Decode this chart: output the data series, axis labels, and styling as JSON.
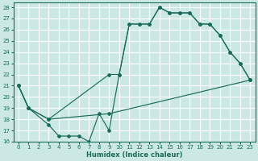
{
  "xlabel": "Humidex (Indice chaleur)",
  "background_color": "#cce8e5",
  "grid_color": "#ffffff",
  "line_color": "#1a6b5a",
  "ylim": [
    16,
    28.4
  ],
  "xlim": [
    -0.5,
    23.5
  ],
  "yticks": [
    16,
    17,
    18,
    19,
    20,
    21,
    22,
    23,
    24,
    25,
    26,
    27,
    28
  ],
  "xticks": [
    0,
    1,
    2,
    3,
    4,
    5,
    6,
    7,
    8,
    9,
    10,
    11,
    12,
    13,
    14,
    15,
    16,
    17,
    18,
    19,
    20,
    21,
    22,
    23
  ],
  "line1_x": [
    0,
    1,
    3,
    4,
    5,
    6,
    7,
    8,
    9,
    10,
    11,
    12,
    13,
    14,
    15,
    16,
    17,
    18,
    19,
    20,
    21,
    22,
    23
  ],
  "line1_y": [
    21,
    19,
    17.5,
    16.5,
    16.5,
    16.5,
    16,
    18.5,
    17,
    22,
    26.5,
    26.5,
    26.5,
    28,
    27.5,
    27.5,
    27.5,
    26.5,
    26.5,
    25.5,
    24,
    23,
    21.5
  ],
  "line2_x": [
    0,
    1,
    3,
    9,
    10,
    11,
    12,
    13,
    14,
    15,
    16,
    17,
    18,
    19,
    20,
    21,
    22,
    23
  ],
  "line2_y": [
    21,
    19,
    18,
    22,
    22,
    26.5,
    26.5,
    26.5,
    28,
    27.5,
    27.5,
    27.5,
    26.5,
    26.5,
    25.5,
    24,
    23,
    21.5
  ],
  "line3_x": [
    0,
    1,
    3,
    9,
    23
  ],
  "line3_y": [
    21,
    19,
    18,
    18.5,
    21.5
  ]
}
